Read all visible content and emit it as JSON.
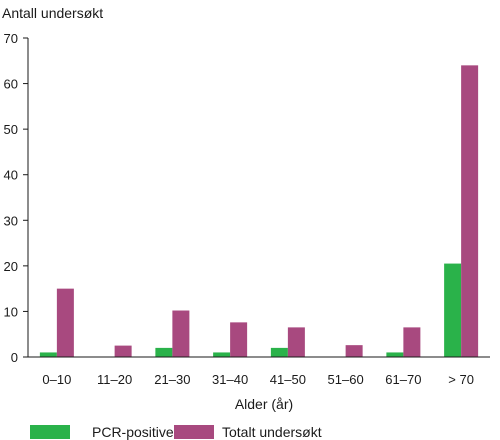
{
  "chart_data": {
    "type": "bar",
    "ylabel": "Antall undersøkt",
    "xlabel": "Alder (år)",
    "categories": [
      "0–10",
      "11–20",
      "21–30",
      "31–40",
      "41–50",
      "51–60",
      "61–70",
      "> 70"
    ],
    "series": [
      {
        "name": "PCR-positive",
        "color": "#2ab24a",
        "values": [
          1,
          0,
          2,
          1,
          2,
          0,
          1,
          20.5
        ]
      },
      {
        "name": "Totalt undersøkt",
        "color": "#a8497f",
        "values": [
          15,
          2.5,
          10.2,
          7.6,
          6.5,
          2.6,
          6.5,
          64
        ]
      }
    ],
    "ylim": [
      0,
      70
    ],
    "yticks": [
      0,
      10,
      20,
      30,
      40,
      50,
      60,
      70
    ],
    "grid": false,
    "legend": "bottom"
  }
}
